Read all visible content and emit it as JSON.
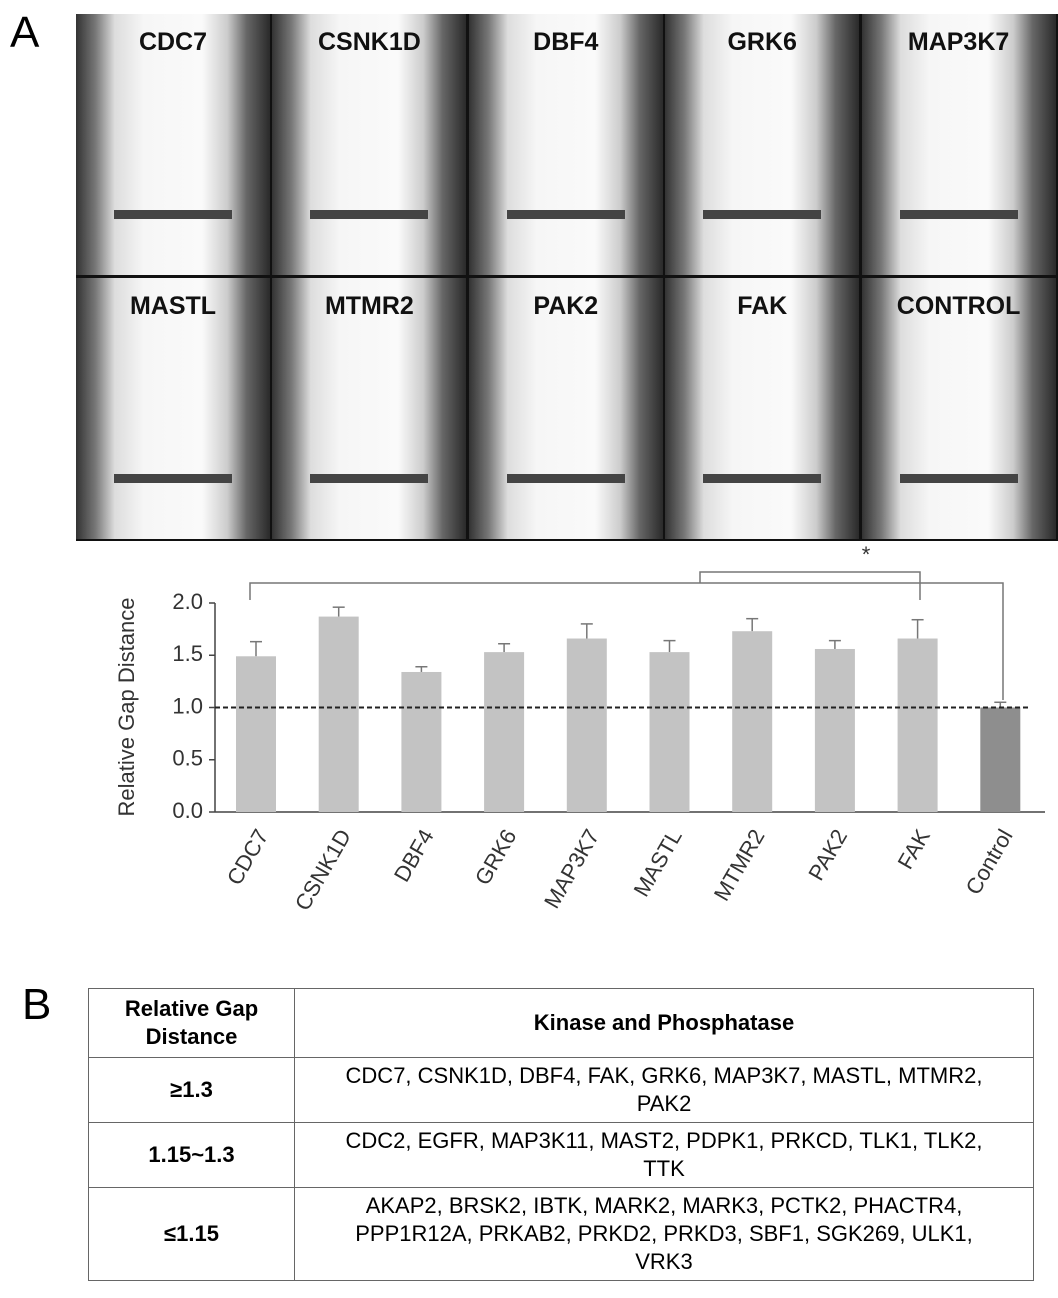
{
  "panel_a": {
    "label": "A",
    "images": [
      "CDC7",
      "CSNK1D",
      "DBF4",
      "GRK6",
      "MAP3K7",
      "MASTL",
      "MTMR2",
      "PAK2",
      "FAK",
      "CONTROL"
    ]
  },
  "chart_data": {
    "type": "bar",
    "y_label": "Relative Gap Distance",
    "categories": [
      "CDC7",
      "CSNK1D",
      "DBF4",
      "GRK6",
      "MAP3K7",
      "MASTL",
      "MTMR2",
      "PAK2",
      "FAK",
      "Control"
    ],
    "values": [
      1.49,
      1.87,
      1.34,
      1.53,
      1.66,
      1.53,
      1.73,
      1.56,
      1.66,
      1.0
    ],
    "errors": [
      0.14,
      0.09,
      0.05,
      0.08,
      0.14,
      0.11,
      0.12,
      0.08,
      0.18,
      0.05
    ],
    "colors": [
      "#c3c3c3",
      "#c3c3c3",
      "#c3c3c3",
      "#c3c3c3",
      "#c3c3c3",
      "#c3c3c3",
      "#c3c3c3",
      "#c3c3c3",
      "#c3c3c3",
      "#8e8e8e"
    ],
    "ylim": [
      0,
      2.0
    ],
    "yticks": [
      {
        "value": 0,
        "label": "0.0"
      },
      {
        "value": 0.5,
        "label": "0.5"
      },
      {
        "value": 1,
        "label": "1.0"
      },
      {
        "value": 1.5,
        "label": "1.5"
      },
      {
        "value": 2,
        "label": "2.0"
      }
    ],
    "reference_line": 1.0,
    "annotation": "*"
  },
  "panel_b": {
    "label": "B",
    "table": {
      "header": [
        "Relative Gap Distance",
        "Kinase and Phosphatase"
      ],
      "rows": [
        [
          "≥1.3",
          "CDC7, CSNK1D, DBF4, FAK, GRK6, MAP3K7, MASTL, MTMR2, PAK2"
        ],
        [
          "1.15~1.3",
          "CDC2, EGFR, MAP3K11, MAST2, PDPK1, PRKCD, TLK1, TLK2, TTK"
        ],
        [
          "≤1.15",
          "AKAP2, BRSK2, IBTK, MARK2, MARK3, PCTK2, PHACTR4, PPP1R12A, PRKAB2, PRKD2, PRKD3, SBF1, SGK269, ULK1, VRK3"
        ]
      ]
    }
  }
}
